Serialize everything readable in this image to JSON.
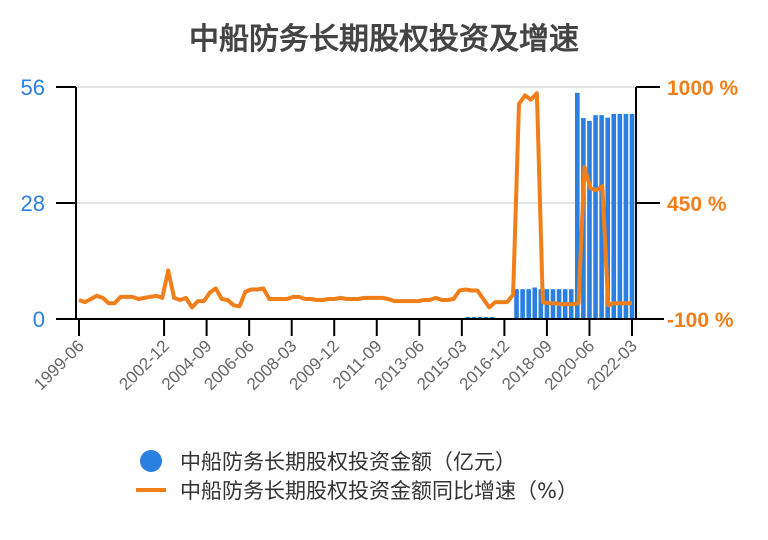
{
  "chart_data": {
    "type": "bar+line",
    "title": "中船防务长期股权投资及增速",
    "left_axis": {
      "ticks": [
        "0",
        "28",
        "56"
      ],
      "range": [
        0,
        56
      ],
      "color": "#2a7fe0"
    },
    "right_axis": {
      "ticks": [
        "-100 %",
        "450 %",
        "1000 %"
      ],
      "range": [
        -100,
        1000
      ],
      "color": "#f07f1a"
    },
    "x_tick_labels": [
      "1999-06",
      "2002-12",
      "2004-09",
      "2006-06",
      "2008-03",
      "2009-12",
      "2011-09",
      "2013-06",
      "2015-03",
      "2016-12",
      "2018-09",
      "2020-06",
      "2022-03"
    ],
    "grid": true,
    "legend_position": "bottom",
    "series": [
      {
        "name": "中船防务长期股权投资金额（亿元）",
        "type": "bar",
        "color": "#2a7fe0",
        "points": [
          [
            "2015-06",
            0.5
          ],
          [
            "2015-09",
            0.5
          ],
          [
            "2015-12",
            0.5
          ],
          [
            "2016-03",
            0.5
          ],
          [
            "2016-06",
            0.5
          ],
          [
            "2017-06",
            7.2
          ],
          [
            "2017-09",
            7.2
          ],
          [
            "2017-12",
            7.2
          ],
          [
            "2018-03",
            7.6
          ],
          [
            "2018-06",
            7.2
          ],
          [
            "2018-09",
            7.2
          ],
          [
            "2018-12",
            7.2
          ],
          [
            "2019-03",
            7.2
          ],
          [
            "2019-06",
            7.2
          ],
          [
            "2019-09",
            7.2
          ],
          [
            "2019-12",
            54.6
          ],
          [
            "2020-03",
            48.5
          ],
          [
            "2020-06",
            47.8
          ],
          [
            "2020-09",
            49.2
          ],
          [
            "2020-12",
            49.2
          ],
          [
            "2021-03",
            48.6
          ],
          [
            "2021-06",
            49.5
          ],
          [
            "2021-09",
            49.5
          ],
          [
            "2021-12",
            49.5
          ],
          [
            "2022-03",
            49.5
          ]
        ]
      },
      {
        "name": "中船防务长期股权投资金额同比增速（%）",
        "type": "line",
        "color": "#f07f1a",
        "points": [
          [
            0,
            -10
          ],
          [
            1,
            -20
          ],
          [
            2,
            -5
          ],
          [
            3,
            10
          ],
          [
            4,
            0
          ],
          [
            5,
            -25
          ],
          [
            6,
            -25
          ],
          [
            7,
            5
          ],
          [
            8,
            5
          ],
          [
            9,
            5
          ],
          [
            10,
            -5
          ],
          [
            11,
            0
          ],
          [
            12,
            5
          ],
          [
            13,
            10
          ],
          [
            14,
            0
          ],
          [
            15,
            130
          ],
          [
            16,
            0
          ],
          [
            17,
            -10
          ],
          [
            18,
            0
          ],
          [
            19,
            -45
          ],
          [
            20,
            -15
          ],
          [
            21,
            -15
          ],
          [
            22,
            25
          ],
          [
            23,
            45
          ],
          [
            24,
            -5
          ],
          [
            25,
            -10
          ],
          [
            26,
            -35
          ],
          [
            27,
            -40
          ],
          [
            28,
            30
          ],
          [
            29,
            40
          ],
          [
            30,
            40
          ],
          [
            31,
            45
          ],
          [
            32,
            -5
          ],
          [
            33,
            -5
          ],
          [
            34,
            -5
          ],
          [
            35,
            -5
          ],
          [
            36,
            5
          ],
          [
            37,
            5
          ],
          [
            38,
            -5
          ],
          [
            39,
            -5
          ],
          [
            40,
            -10
          ],
          [
            41,
            -10
          ],
          [
            42,
            -5
          ],
          [
            43,
            -5
          ],
          [
            44,
            0
          ],
          [
            45,
            -5
          ],
          [
            46,
            -5
          ],
          [
            47,
            -5
          ],
          [
            48,
            0
          ],
          [
            49,
            0
          ],
          [
            50,
            0
          ],
          [
            51,
            0
          ],
          [
            52,
            -5
          ],
          [
            53,
            -15
          ],
          [
            54,
            -15
          ],
          [
            55,
            -15
          ],
          [
            56,
            -15
          ],
          [
            57,
            -15
          ],
          [
            58,
            -10
          ],
          [
            59,
            -10
          ],
          [
            60,
            0
          ],
          [
            61,
            -10
          ],
          [
            62,
            -10
          ],
          [
            63,
            -5
          ],
          [
            64,
            35
          ],
          [
            65,
            40
          ],
          [
            66,
            35
          ],
          [
            67,
            35
          ],
          [
            68,
            -5
          ],
          [
            69,
            -45
          ],
          [
            70,
            -20
          ],
          [
            71,
            -20
          ],
          [
            72,
            -20
          ],
          [
            73,
            15
          ],
          [
            74,
            920
          ],
          [
            75,
            960
          ],
          [
            76,
            940
          ],
          [
            77,
            970
          ],
          [
            78,
            -20
          ],
          [
            79,
            -25
          ],
          [
            80,
            -25
          ],
          [
            81,
            -30
          ],
          [
            82,
            -30
          ],
          [
            83,
            -30
          ],
          [
            84,
            -25
          ],
          [
            85,
            620
          ],
          [
            86,
            520
          ],
          [
            87,
            510
          ],
          [
            88,
            530
          ],
          [
            89,
            -35
          ],
          [
            90,
            -25
          ],
          [
            91,
            -25
          ],
          [
            92,
            -25
          ],
          [
            93,
            -25
          ]
        ]
      }
    ]
  },
  "legend": {
    "bar_label": "中船防务长期股权投资金额（亿元）",
    "line_label": "中船防务长期股权投资金额同比增速（%）"
  }
}
